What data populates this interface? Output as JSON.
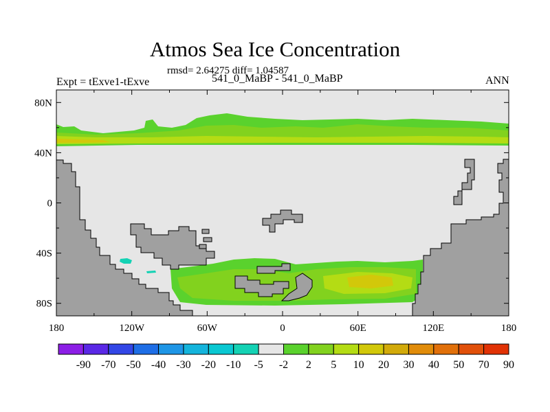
{
  "chart_data": {
    "type": "heatmap",
    "title": "Atmos Sea Ice Concentration",
    "stats": "rmsd= 2.64275 diff= 1.04587",
    "left_label": "Expt = tExve1-tExve",
    "center_label": "541_0_MaBP - 541_0_MaBP",
    "right_label": "ANN",
    "x_ticks": [
      "180",
      "120W",
      "60W",
      "0",
      "60E",
      "120E",
      "180"
    ],
    "x_tick_values": [
      -180,
      -120,
      -60,
      0,
      60,
      120,
      180
    ],
    "y_ticks": [
      "80N",
      "40N",
      "0",
      "40S",
      "80S"
    ],
    "y_tick_values": [
      80,
      40,
      0,
      -40,
      -80
    ],
    "xlim": [
      -180,
      180
    ],
    "ylim": [
      -90,
      90
    ],
    "colorbar_labels": [
      "-90",
      "-70",
      "-50",
      "-40",
      "-30",
      "-20",
      "-10",
      "-5",
      "-2",
      "2",
      "5",
      "10",
      "20",
      "30",
      "40",
      "50",
      "70",
      "90"
    ],
    "colorbar_colors": [
      "#8c1ee6",
      "#5a28e6",
      "#3246e6",
      "#1e6ee6",
      "#1e96e6",
      "#14b4dc",
      "#0ac8d2",
      "#14d2b4",
      "#e6e6e6",
      "#5ad22d",
      "#82d21e",
      "#b4dc14",
      "#d2c80a",
      "#d2aa0a",
      "#e18c0a",
      "#e1700a",
      "#e1500a",
      "#e13205"
    ],
    "colors": {
      "land": "#a0a0a0",
      "background": "#e6e6e6",
      "pos_low": "#5ad22d",
      "pos_mid": "#82d21e",
      "pos_high": "#b4dc14",
      "pos_top": "#d2c80a",
      "neg_low": "#14d2b4"
    }
  }
}
